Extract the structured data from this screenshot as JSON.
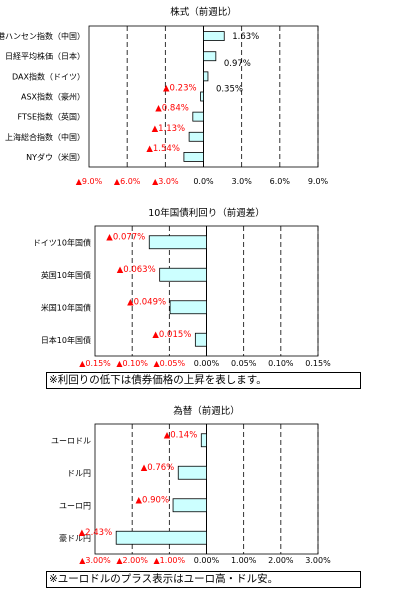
{
  "chart_data": [
    {
      "type": "bar",
      "orientation": "horizontal",
      "title": "株式（前週比）",
      "categories": [
        "香港ハンセン指数（中国）",
        "日経平均株価（日本）",
        "DAX指数（ドイツ）",
        "ASX指数（豪州）",
        "FTSE指数（英国）",
        "上海総合指数（中国）",
        "NYダウ（米国）"
      ],
      "values": [
        1.63,
        0.97,
        0.35,
        -0.23,
        -0.84,
        -1.13,
        -1.54
      ],
      "data_labels": [
        "1.63%",
        "0.97%",
        "0.35%",
        "▲0.23%",
        "▲0.84%",
        "▲1.13%",
        "▲1.54%"
      ],
      "tick_labels": [
        "▲9.0%",
        "▲6.0%",
        "▲3.0%",
        "0.0%",
        "3.0%",
        "6.0%",
        "9.0%"
      ],
      "xlim": [
        -9,
        9
      ],
      "ticks": [
        -9,
        -6,
        -3,
        0,
        3,
        6,
        9
      ],
      "grid": "dashed-vertical"
    },
    {
      "type": "bar",
      "orientation": "horizontal",
      "title": "10年国債利回り（前週差）",
      "categories": [
        "ドイツ10年国債",
        "英国10年国債",
        "米国10年国債",
        "日本10年国債"
      ],
      "values": [
        -0.077,
        -0.063,
        -0.049,
        -0.015
      ],
      "data_labels": [
        "▲0.077%",
        "▲0.063%",
        "▲0.049%",
        "▲0.015%"
      ],
      "tick_labels": [
        "▲0.15%",
        "▲0.10%",
        "▲0.05%",
        "0.00%",
        "0.05%",
        "0.10%",
        "0.15%"
      ],
      "xlim": [
        -0.15,
        0.15
      ],
      "ticks": [
        -0.15,
        -0.1,
        -0.05,
        0,
        0.05,
        0.1,
        0.15
      ],
      "grid": "dashed-vertical",
      "note": "※利回りの低下は債券価格の上昇を表します。"
    },
    {
      "type": "bar",
      "orientation": "horizontal",
      "title": "為替（前週比）",
      "categories": [
        "ユーロドル",
        "ドル円",
        "ユーロ円",
        "豪ドル円"
      ],
      "values": [
        -0.14,
        -0.76,
        -0.9,
        -2.43
      ],
      "data_labels": [
        "▲0.14%",
        "▲0.76%",
        "▲0.90%",
        "▲2.43%"
      ],
      "tick_labels": [
        "▲3.00%",
        "▲2.00%",
        "▲1.00%",
        "0.00%",
        "1.00%",
        "2.00%",
        "3.00%"
      ],
      "xlim": [
        -3,
        3
      ],
      "ticks": [
        -3,
        -2,
        -1,
        0,
        1,
        2,
        3
      ],
      "grid": "dashed-vertical",
      "note": "※ユーロドルのプラス表示はユーロ高・ドル安。"
    }
  ],
  "colors": {
    "bar_fill": "#ccffff",
    "bar_stroke": "#000000",
    "negative_label": "#ff0000",
    "positive_label": "#000000"
  }
}
